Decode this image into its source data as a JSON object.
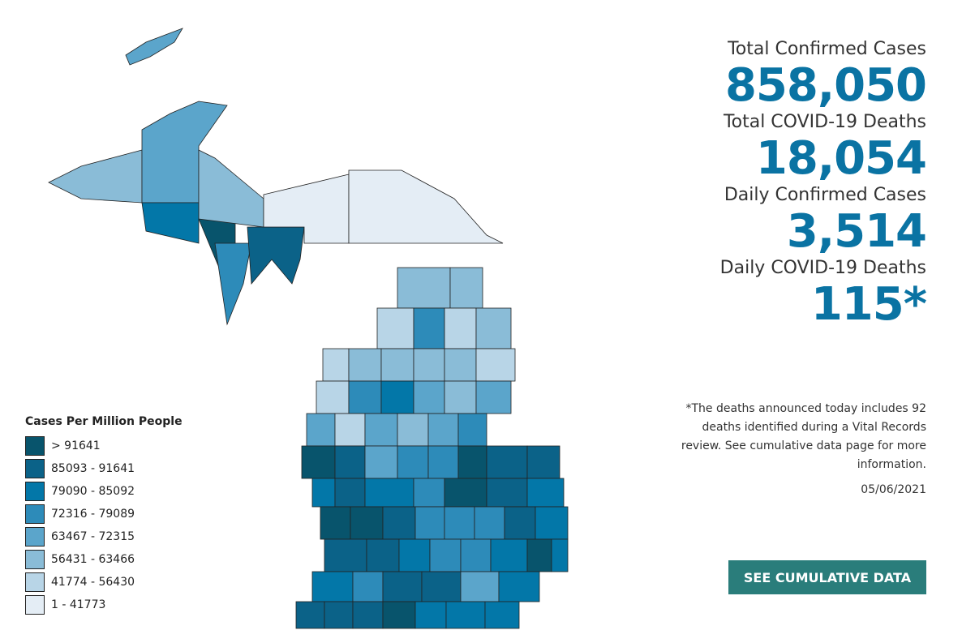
{
  "stats": [
    {
      "label": "Total Confirmed Cases",
      "value": "858,050"
    },
    {
      "label": "Total COVID-19 Deaths",
      "value": "18,054"
    },
    {
      "label": "Daily Confirmed Cases",
      "value": "3,514"
    },
    {
      "label": "Daily COVID-19 Deaths",
      "value": "115*"
    }
  ],
  "note": "*The deaths announced today includes 92 deaths identified during a Vital Records review. See cumulative data page for more information.",
  "date": "05/06/2021",
  "button": "SEE CUMULATIVE DATA",
  "legend": {
    "title": "Cases Per Million People",
    "items": [
      {
        "label": "> 91641",
        "color": "#08546c"
      },
      {
        "label": "85093 - 91641",
        "color": "#0b6288"
      },
      {
        "label": "79090 - 85092",
        "color": "#0377a8"
      },
      {
        "label": "72316 - 79089",
        "color": "#2d8bb9"
      },
      {
        "label": "63467 - 72315",
        "color": "#5ba5cb"
      },
      {
        "label": "56431 - 63466",
        "color": "#8abcd7"
      },
      {
        "label": "41774 - 56430",
        "color": "#b8d5e7"
      },
      {
        "label": "1 - 41773",
        "color": "#e4edf5"
      }
    ]
  }
}
